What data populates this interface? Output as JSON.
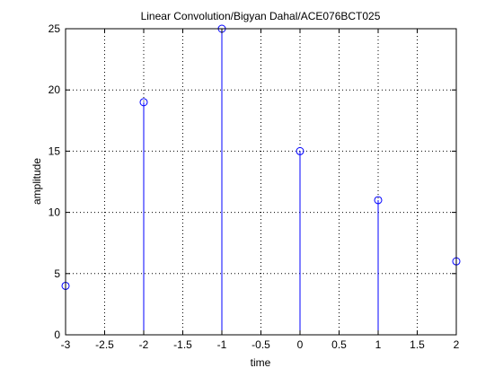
{
  "chart_data": {
    "type": "stem",
    "title": "Linear Convolution/Bigyan Dahal/ACE076BCT025",
    "xlabel": "time",
    "ylabel": "amplitude",
    "xlim": [
      -3,
      2
    ],
    "ylim": [
      0,
      25
    ],
    "grid": true,
    "x_ticks": [
      "-3",
      "-2.5",
      "-2",
      "-1.5",
      "-1",
      "-0.5",
      "0",
      "0.5",
      "1",
      "1.5",
      "2"
    ],
    "y_ticks": [
      "0",
      "5",
      "10",
      "15",
      "20",
      "25"
    ],
    "series": [
      {
        "x": [
          -3,
          -2,
          -1,
          0,
          1,
          2
        ],
        "values": [
          4,
          19,
          25,
          15,
          11,
          6
        ],
        "color": "#0000ff",
        "marker": "circle"
      }
    ]
  }
}
